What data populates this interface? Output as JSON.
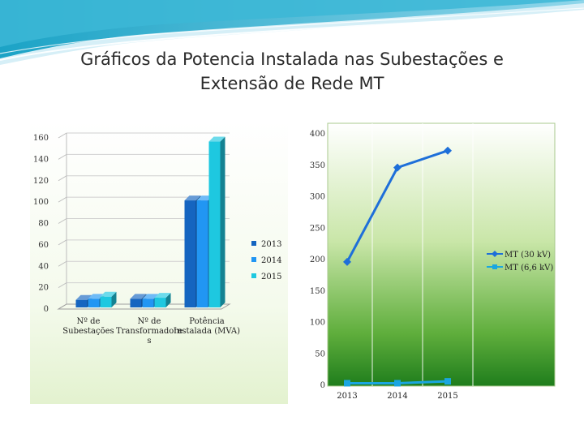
{
  "slide": {
    "title_line1": "Gráficos da Potencia Instalada nas Subestações e",
    "title_line2": "Extensão de Rede MT"
  },
  "colors": {
    "series_2013": "#1565c0",
    "series_2014": "#2196f3",
    "series_2015": "#1ec8e0",
    "mt30": "#1e6fd9",
    "mt66": "#1aa6e0"
  },
  "chart_data": [
    {
      "type": "bar",
      "style": "3d-clustered-column",
      "categories": [
        "Nº de Subestações",
        "Nº de Transformadores",
        "Potência Instalada (MVA)"
      ],
      "category_labels": [
        [
          "Nº de",
          "Subestações"
        ],
        [
          "Nº de",
          "Transformadore",
          "s"
        ],
        [
          "Potência",
          "Instalada (MVA)"
        ]
      ],
      "series": [
        {
          "name": "2013",
          "values": [
            4,
            5,
            97
          ]
        },
        {
          "name": "2014",
          "values": [
            5,
            5,
            97
          ]
        },
        {
          "name": "2015",
          "values": [
            7,
            6,
            152
          ]
        }
      ],
      "ylim": [
        0,
        160
      ],
      "yticks": [
        "0",
        "20",
        "40",
        "60",
        "80",
        "100",
        "120",
        "140",
        "160"
      ],
      "legend_position": "right",
      "grid": true
    },
    {
      "type": "line",
      "categories": [
        "2013",
        "2014",
        "2015"
      ],
      "series": [
        {
          "name": "MT (30 kV)",
          "values": [
            195,
            345,
            372
          ]
        },
        {
          "name": "MT (6,6 kV)",
          "values": [
            2,
            2,
            5
          ]
        }
      ],
      "ylim": [
        0,
        400
      ],
      "yticks": [
        "0",
        "50",
        "100",
        "150",
        "200",
        "250",
        "300",
        "350",
        "400"
      ],
      "legend_position": "right",
      "grid": true
    }
  ]
}
